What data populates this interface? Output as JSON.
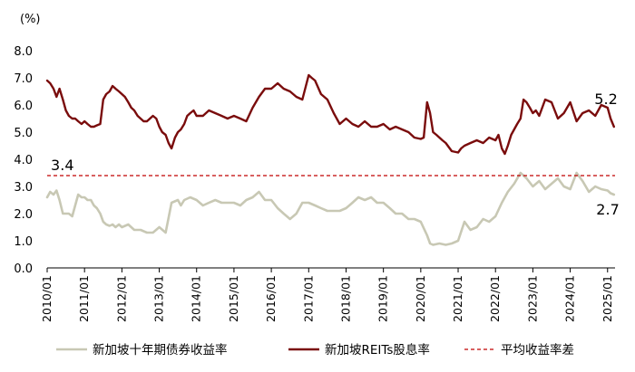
{
  "chart_data": {
    "type": "line",
    "y_unit_label": "(%)",
    "ylim": [
      0,
      8
    ],
    "yticks": [
      "0.0",
      "1.0",
      "2.0",
      "3.0",
      "4.0",
      "5.0",
      "6.0",
      "7.0",
      "8.0"
    ],
    "xlim": [
      2010.0,
      2025.2
    ],
    "xticks": [
      "2010/01",
      "2011/01",
      "2012/01",
      "2013/01",
      "2014/01",
      "2015/01",
      "2016/01",
      "2017/01",
      "2018/01",
      "2019/01",
      "2020/01",
      "2021/01",
      "2022/01",
      "2023/01",
      "2024/01",
      "2025/01"
    ],
    "grid": false,
    "legend_position": "bottom",
    "colors": {
      "gov": "#c8c8b4",
      "reits": "#7a0c0c",
      "avg": "#c00000"
    },
    "series": [
      {
        "name": "新加坡十年期债券收益率",
        "x": [
          2010.0,
          2010.08,
          2010.17,
          2010.25,
          2010.33,
          2010.42,
          2010.5,
          2010.58,
          2010.67,
          2010.75,
          2010.83,
          2010.92,
          2011.0,
          2011.08,
          2011.17,
          2011.25,
          2011.33,
          2011.42,
          2011.5,
          2011.58,
          2011.67,
          2011.75,
          2011.83,
          2011.92,
          2012.0,
          2012.17,
          2012.33,
          2012.5,
          2012.67,
          2012.83,
          2013.0,
          2013.17,
          2013.33,
          2013.5,
          2013.58,
          2013.67,
          2013.83,
          2014.0,
          2014.17,
          2014.33,
          2014.5,
          2014.67,
          2014.83,
          2015.0,
          2015.17,
          2015.33,
          2015.5,
          2015.67,
          2015.83,
          2016.0,
          2016.17,
          2016.33,
          2016.5,
          2016.67,
          2016.83,
          2017.0,
          2017.17,
          2017.33,
          2017.5,
          2017.67,
          2017.83,
          2018.0,
          2018.17,
          2018.33,
          2018.5,
          2018.67,
          2018.83,
          2019.0,
          2019.17,
          2019.33,
          2019.5,
          2019.67,
          2019.83,
          2020.0,
          2020.17,
          2020.25,
          2020.33,
          2020.5,
          2020.67,
          2020.83,
          2021.0,
          2021.17,
          2021.33,
          2021.5,
          2021.67,
          2021.83,
          2022.0,
          2022.17,
          2022.33,
          2022.5,
          2022.67,
          2022.83,
          2023.0,
          2023.17,
          2023.33,
          2023.5,
          2023.67,
          2023.83,
          2024.0,
          2024.17,
          2024.33,
          2024.5,
          2024.67,
          2024.83,
          2025.0,
          2025.08,
          2025.17
        ],
        "values": [
          2.6,
          2.8,
          2.7,
          2.85,
          2.5,
          2.0,
          2.0,
          2.0,
          1.9,
          2.3,
          2.7,
          2.6,
          2.6,
          2.5,
          2.5,
          2.3,
          2.2,
          2.0,
          1.7,
          1.6,
          1.55,
          1.6,
          1.5,
          1.6,
          1.5,
          1.6,
          1.4,
          1.4,
          1.3,
          1.3,
          1.5,
          1.3,
          2.4,
          2.5,
          2.3,
          2.5,
          2.6,
          2.5,
          2.3,
          2.4,
          2.5,
          2.4,
          2.4,
          2.4,
          2.3,
          2.5,
          2.6,
          2.8,
          2.5,
          2.5,
          2.2,
          2.0,
          1.8,
          2.0,
          2.4,
          2.4,
          2.3,
          2.2,
          2.1,
          2.1,
          2.1,
          2.2,
          2.4,
          2.6,
          2.5,
          2.6,
          2.4,
          2.4,
          2.2,
          2.0,
          2.0,
          1.8,
          1.8,
          1.7,
          1.2,
          0.9,
          0.85,
          0.9,
          0.85,
          0.9,
          1.0,
          1.7,
          1.4,
          1.5,
          1.8,
          1.7,
          1.9,
          2.4,
          2.8,
          3.1,
          3.5,
          3.3,
          3.0,
          3.2,
          2.9,
          3.1,
          3.3,
          3.0,
          2.9,
          3.5,
          3.2,
          2.8,
          3.0,
          2.9,
          2.85,
          2.75,
          2.7
        ]
      },
      {
        "name": "新加坡REITs股息率",
        "x": [
          2010.0,
          2010.08,
          2010.17,
          2010.25,
          2010.33,
          2010.42,
          2010.5,
          2010.58,
          2010.67,
          2010.75,
          2010.83,
          2010.92,
          2011.0,
          2011.08,
          2011.17,
          2011.25,
          2011.33,
          2011.42,
          2011.5,
          2011.58,
          2011.67,
          2011.75,
          2011.83,
          2011.92,
          2012.0,
          2012.08,
          2012.17,
          2012.25,
          2012.33,
          2012.42,
          2012.5,
          2012.58,
          2012.67,
          2012.75,
          2012.83,
          2012.92,
          2013.0,
          2013.08,
          2013.17,
          2013.25,
          2013.33,
          2013.42,
          2013.5,
          2013.58,
          2013.67,
          2013.75,
          2013.83,
          2013.92,
          2014.0,
          2014.17,
          2014.33,
          2014.5,
          2014.67,
          2014.83,
          2015.0,
          2015.17,
          2015.33,
          2015.5,
          2015.67,
          2015.83,
          2016.0,
          2016.17,
          2016.33,
          2016.5,
          2016.67,
          2016.83,
          2017.0,
          2017.08,
          2017.17,
          2017.33,
          2017.5,
          2017.67,
          2017.83,
          2018.0,
          2018.17,
          2018.33,
          2018.5,
          2018.67,
          2018.83,
          2019.0,
          2019.17,
          2019.33,
          2019.5,
          2019.67,
          2019.83,
          2020.0,
          2020.08,
          2020.17,
          2020.25,
          2020.33,
          2020.42,
          2020.5,
          2020.58,
          2020.67,
          2020.83,
          2021.0,
          2021.08,
          2021.17,
          2021.33,
          2021.5,
          2021.67,
          2021.83,
          2022.0,
          2022.08,
          2022.17,
          2022.25,
          2022.33,
          2022.42,
          2022.5,
          2022.58,
          2022.67,
          2022.75,
          2022.83,
          2022.92,
          2023.0,
          2023.08,
          2023.17,
          2023.33,
          2023.5,
          2023.67,
          2023.83,
          2024.0,
          2024.17,
          2024.33,
          2024.5,
          2024.67,
          2024.83,
          2025.0,
          2025.08,
          2025.17
        ],
        "values": [
          6.9,
          6.8,
          6.6,
          6.3,
          6.6,
          6.2,
          5.8,
          5.6,
          5.5,
          5.5,
          5.4,
          5.3,
          5.4,
          5.3,
          5.2,
          5.2,
          5.25,
          5.3,
          6.2,
          6.4,
          6.5,
          6.7,
          6.6,
          6.5,
          6.4,
          6.3,
          6.1,
          5.9,
          5.8,
          5.6,
          5.5,
          5.4,
          5.4,
          5.5,
          5.6,
          5.5,
          5.2,
          5.0,
          4.9,
          4.6,
          4.4,
          4.8,
          5.0,
          5.1,
          5.3,
          5.6,
          5.7,
          5.8,
          5.6,
          5.6,
          5.8,
          5.7,
          5.6,
          5.5,
          5.6,
          5.5,
          5.4,
          5.9,
          6.3,
          6.6,
          6.6,
          6.8,
          6.6,
          6.5,
          6.3,
          6.2,
          7.1,
          7.0,
          6.9,
          6.4,
          6.2,
          5.7,
          5.3,
          5.5,
          5.3,
          5.2,
          5.4,
          5.2,
          5.2,
          5.3,
          5.1,
          5.2,
          5.1,
          5.0,
          4.8,
          4.75,
          4.8,
          6.1,
          5.7,
          5.0,
          4.9,
          4.8,
          4.7,
          4.6,
          4.3,
          4.25,
          4.4,
          4.5,
          4.6,
          4.7,
          4.6,
          4.8,
          4.7,
          4.9,
          4.4,
          4.2,
          4.5,
          4.9,
          5.1,
          5.3,
          5.5,
          6.2,
          6.1,
          5.9,
          5.7,
          5.8,
          5.6,
          6.2,
          6.1,
          5.5,
          5.7,
          6.1,
          5.4,
          5.7,
          5.8,
          5.6,
          6.0,
          5.9,
          5.5,
          5.2
        ]
      },
      {
        "name": "平均收益率差",
        "x": [
          2010.0,
          2025.2
        ],
        "values": [
          3.4,
          3.4
        ]
      }
    ],
    "annotations": [
      {
        "text": "3.4",
        "x": 2010.05,
        "y": 3.4
      },
      {
        "text": "5.2",
        "x": 2025.17,
        "y": 5.2
      },
      {
        "text": "2.7",
        "x": 2025.17,
        "y": 2.7
      }
    ]
  }
}
